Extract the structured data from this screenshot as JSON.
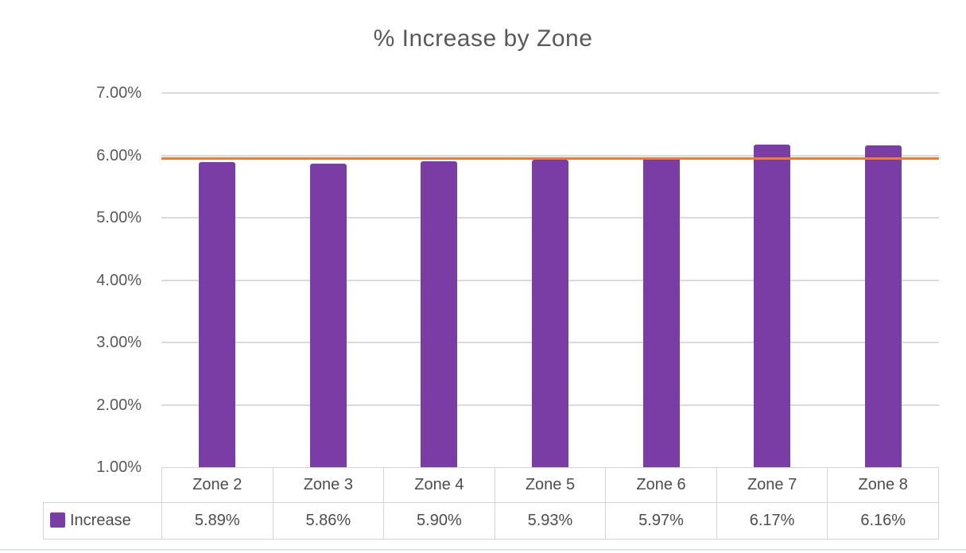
{
  "page": {
    "background": "#FFFFFF",
    "bottom_rule_color": "#DDE3F0"
  },
  "chart_data": {
    "type": "bar",
    "title": "% Increase by Zone",
    "categories": [
      "Zone 2",
      "Zone 3",
      "Zone 4",
      "Zone 5",
      "Zone 6",
      "Zone 7",
      "Zone 8"
    ],
    "series": [
      {
        "name": "Increase",
        "values": [
          5.89,
          5.86,
          5.9,
          5.93,
          5.97,
          6.17,
          6.16
        ],
        "value_labels": [
          "5.89%",
          "5.86%",
          "5.90%",
          "5.93%",
          "5.97%",
          "6.17%",
          "6.16%"
        ],
        "color": "#7A3DA6"
      }
    ],
    "unit": "percent",
    "xlabel": "",
    "ylabel": "",
    "ylim": [
      1.0,
      7.0
    ],
    "ytick_step": 1.0,
    "ytick_labels": [
      "1.00%",
      "2.00%",
      "3.00%",
      "4.00%",
      "5.00%",
      "6.00%",
      "7.00%"
    ],
    "grid": true,
    "gridline_color": "#DBD9DF",
    "reference_line": {
      "value": 5.95,
      "color": "#ED7D31",
      "label": ""
    },
    "legend": {
      "position": "data-table-left",
      "entries": [
        "Increase"
      ]
    },
    "data_table_shown": true,
    "text_color": "#595959"
  }
}
